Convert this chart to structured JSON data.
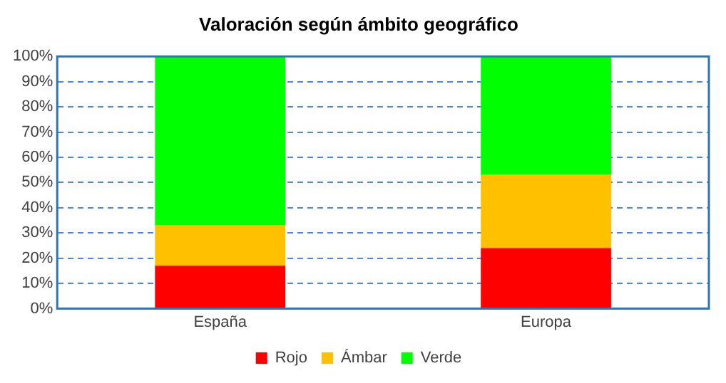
{
  "chart_data": {
    "type": "bar",
    "title": "Valoración según ámbito geográfico",
    "categories": [
      "España",
      "Europa"
    ],
    "stacked": true,
    "series": [
      {
        "name": "Rojo",
        "color": "#ff0000",
        "values": [
          17,
          24
        ]
      },
      {
        "name": "Ámbar",
        "color": "#ffc000",
        "values": [
          16,
          29
        ]
      },
      {
        "name": "Verde",
        "color": "#00ff00",
        "values": [
          67,
          47
        ]
      }
    ],
    "ylim": [
      0,
      100
    ],
    "yticks": [
      {
        "value": 0,
        "label": "0%"
      },
      {
        "value": 10,
        "label": "10%"
      },
      {
        "value": 20,
        "label": "20%"
      },
      {
        "value": 30,
        "label": "30%"
      },
      {
        "value": 40,
        "label": "40%"
      },
      {
        "value": 50,
        "label": "50%"
      },
      {
        "value": 60,
        "label": "60%"
      },
      {
        "value": 70,
        "label": "70%"
      },
      {
        "value": 80,
        "label": "80%"
      },
      {
        "value": 90,
        "label": "90%"
      },
      {
        "value": 100,
        "label": "100%"
      }
    ],
    "grid": "y",
    "legend": "bottom"
  }
}
